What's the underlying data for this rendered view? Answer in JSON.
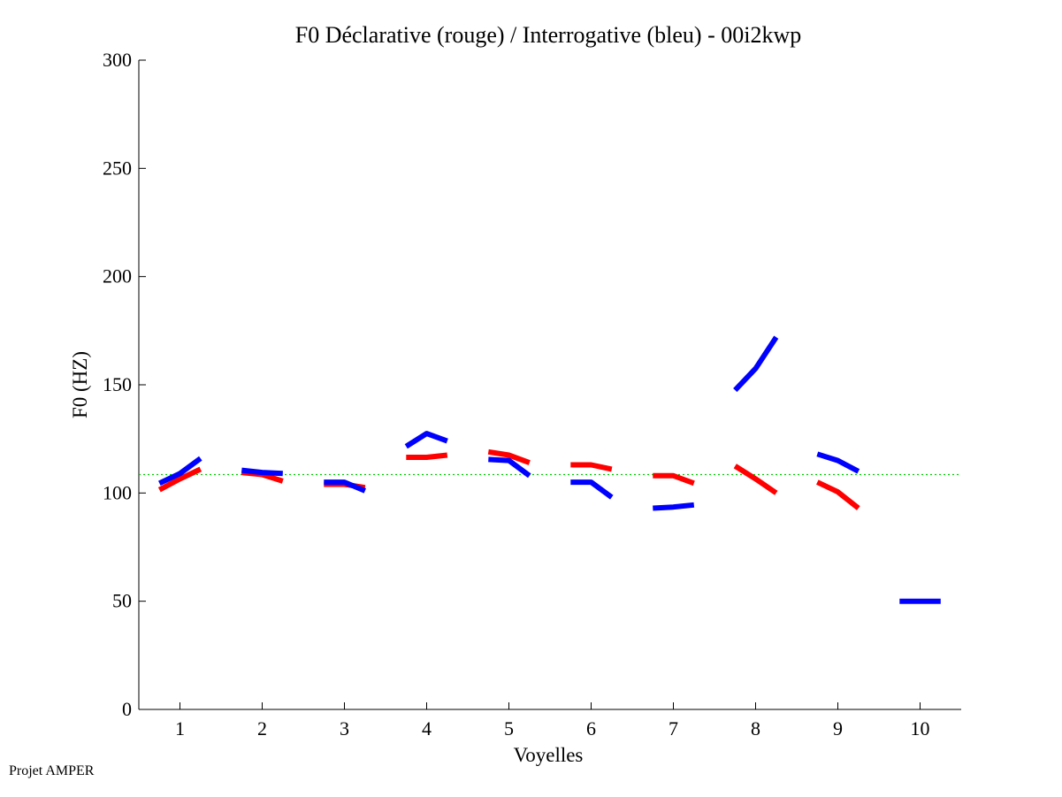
{
  "footer": "Projet AMPER",
  "chart_data": {
    "type": "line",
    "title": "F0 Déclarative (rouge) / Interrogative (bleu) - 00i2kwp",
    "xlabel": "Voyelles",
    "ylabel": "F0 (HZ)",
    "xlim": [
      0.5,
      10.5
    ],
    "ylim": [
      0,
      300
    ],
    "xticks": [
      1,
      2,
      3,
      4,
      5,
      6,
      7,
      8,
      9,
      10
    ],
    "yticks": [
      0,
      50,
      100,
      150,
      200,
      250,
      300
    ],
    "reference_line": {
      "value": 108.5,
      "color": "#00cc00",
      "style": "dotted"
    },
    "series": [
      {
        "name": "Déclarative",
        "color": "#ff0000",
        "segments": [
          {
            "vowel": 1,
            "x": [
              0.75,
              1.0,
              1.25
            ],
            "y": [
              101.5,
              106.5,
              111
            ]
          },
          {
            "vowel": 2,
            "x": [
              1.75,
              2.0,
              2.25
            ],
            "y": [
              109.5,
              108.5,
              105.5
            ]
          },
          {
            "vowel": 3,
            "x": [
              2.75,
              3.0,
              3.25
            ],
            "y": [
              104,
              104,
              102.5
            ]
          },
          {
            "vowel": 4,
            "x": [
              3.75,
              4.0,
              4.25
            ],
            "y": [
              116.5,
              116.5,
              117.5
            ]
          },
          {
            "vowel": 5,
            "x": [
              4.75,
              5.0,
              5.25
            ],
            "y": [
              119,
              117.5,
              114
            ]
          },
          {
            "vowel": 6,
            "x": [
              5.75,
              6.0,
              6.25
            ],
            "y": [
              113,
              113,
              111
            ]
          },
          {
            "vowel": 7,
            "x": [
              6.75,
              7.0,
              7.25
            ],
            "y": [
              108,
              108,
              104.5
            ]
          },
          {
            "vowel": 8,
            "x": [
              7.75,
              8.0,
              8.25
            ],
            "y": [
              112.5,
              106.5,
              100
            ]
          },
          {
            "vowel": 9,
            "x": [
              8.75,
              9.0,
              9.25
            ],
            "y": [
              105,
              100.5,
              93
            ]
          }
        ]
      },
      {
        "name": "Interrogative",
        "color": "#0000ff",
        "segments": [
          {
            "vowel": 1,
            "x": [
              0.75,
              1.0,
              1.25
            ],
            "y": [
              104.5,
              109,
              116
            ]
          },
          {
            "vowel": 2,
            "x": [
              1.75,
              2.0,
              2.25
            ],
            "y": [
              110.5,
              109.5,
              109
            ]
          },
          {
            "vowel": 3,
            "x": [
              2.75,
              3.0,
              3.25
            ],
            "y": [
              105,
              105,
              101
            ]
          },
          {
            "vowel": 4,
            "x": [
              3.75,
              4.0,
              4.25
            ],
            "y": [
              121.5,
              127.5,
              124
            ]
          },
          {
            "vowel": 5,
            "x": [
              4.75,
              5.0,
              5.25
            ],
            "y": [
              115.5,
              115,
              108
            ]
          },
          {
            "vowel": 6,
            "x": [
              5.75,
              6.0,
              6.25
            ],
            "y": [
              105,
              105,
              98
            ]
          },
          {
            "vowel": 7,
            "x": [
              6.75,
              7.0,
              7.25
            ],
            "y": [
              93,
              93.5,
              94.5
            ]
          },
          {
            "vowel": 8,
            "x": [
              7.75,
              8.0,
              8.25
            ],
            "y": [
              147.5,
              157.5,
              172
            ]
          },
          {
            "vowel": 9,
            "x": [
              8.75,
              9.0,
              9.25
            ],
            "y": [
              118,
              115,
              110
            ]
          },
          {
            "vowel": 10,
            "x": [
              9.75,
              10.0,
              10.25
            ],
            "y": [
              50,
              50,
              50
            ]
          }
        ]
      }
    ]
  }
}
